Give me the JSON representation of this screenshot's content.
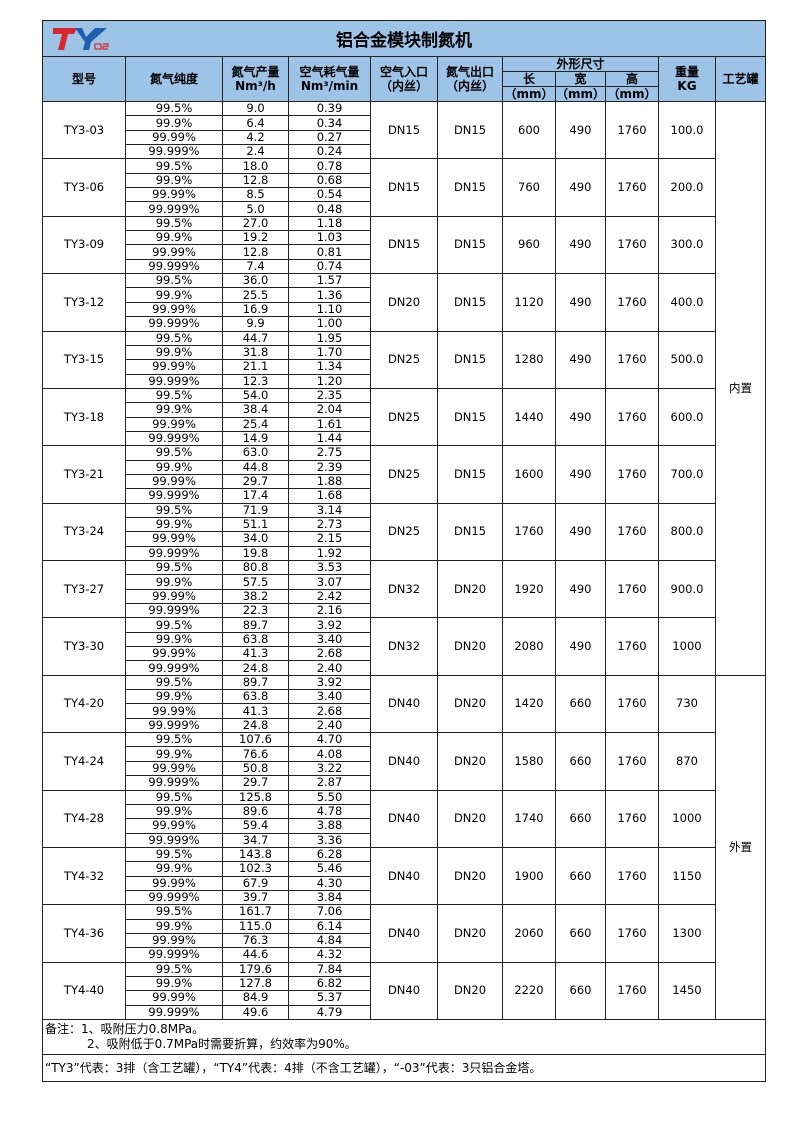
{
  "title": "铝合金模块制氮机",
  "logo_text": "TY O2",
  "headers": {
    "model": "型号",
    "purity": "氮气纯度",
    "output": "氮气产量",
    "output_unit": "Nm³/h",
    "air": "空气耗气量",
    "air_unit": "Nm³/min",
    "air_in": "空气入口",
    "air_in_sub": "（内丝）",
    "n2_out": "氮气出口",
    "n2_out_sub": "（内丝）",
    "dims": "外形尺寸",
    "len": "长",
    "wid": "宽",
    "hei": "高",
    "mm": "（mm）",
    "weight": "重量",
    "weight_unit": "KG",
    "tank": "工艺罐"
  },
  "purities": [
    "99.5%",
    "99.9%",
    "99.99%",
    "99.999%"
  ],
  "tank_groups": [
    {
      "label": "内置",
      "rows": 10
    },
    {
      "label": "外置",
      "rows": 6
    }
  ],
  "models": [
    {
      "model": "TY3-03",
      "output": [
        "9.0",
        "6.4",
        "4.2",
        "2.4"
      ],
      "air": [
        "0.39",
        "0.34",
        "0.27",
        "0.24"
      ],
      "in": "DN15",
      "out": "DN15",
      "l": "600",
      "w": "490",
      "h": "1760",
      "kg": "100.0"
    },
    {
      "model": "TY3-06",
      "output": [
        "18.0",
        "12.8",
        "8.5",
        "5.0"
      ],
      "air": [
        "0.78",
        "0.68",
        "0.54",
        "0.48"
      ],
      "in": "DN15",
      "out": "DN15",
      "l": "760",
      "w": "490",
      "h": "1760",
      "kg": "200.0"
    },
    {
      "model": "TY3-09",
      "output": [
        "27.0",
        "19.2",
        "12.8",
        "7.4"
      ],
      "air": [
        "1.18",
        "1.03",
        "0.81",
        "0.74"
      ],
      "in": "DN15",
      "out": "DN15",
      "l": "960",
      "w": "490",
      "h": "1760",
      "kg": "300.0"
    },
    {
      "model": "TY3-12",
      "output": [
        "36.0",
        "25.5",
        "16.9",
        "9.9"
      ],
      "air": [
        "1.57",
        "1.36",
        "1.10",
        "1.00"
      ],
      "in": "DN20",
      "out": "DN15",
      "l": "1120",
      "w": "490",
      "h": "1760",
      "kg": "400.0"
    },
    {
      "model": "TY3-15",
      "output": [
        "44.7",
        "31.8",
        "21.1",
        "12.3"
      ],
      "air": [
        "1.95",
        "1.70",
        "1.34",
        "1.20"
      ],
      "in": "DN25",
      "out": "DN15",
      "l": "1280",
      "w": "490",
      "h": "1760",
      "kg": "500.0"
    },
    {
      "model": "TY3-18",
      "output": [
        "54.0",
        "38.4",
        "25.4",
        "14.9"
      ],
      "air": [
        "2.35",
        "2.04",
        "1.61",
        "1.44"
      ],
      "in": "DN25",
      "out": "DN15",
      "l": "1440",
      "w": "490",
      "h": "1760",
      "kg": "600.0"
    },
    {
      "model": "TY3-21",
      "output": [
        "63.0",
        "44.8",
        "29.7",
        "17.4"
      ],
      "air": [
        "2.75",
        "2.39",
        "1.88",
        "1.68"
      ],
      "in": "DN25",
      "out": "DN15",
      "l": "1600",
      "w": "490",
      "h": "1760",
      "kg": "700.0"
    },
    {
      "model": "TY3-24",
      "output": [
        "71.9",
        "51.1",
        "34.0",
        "19.8"
      ],
      "air": [
        "3.14",
        "2.73",
        "2.15",
        "1.92"
      ],
      "in": "DN25",
      "out": "DN15",
      "l": "1760",
      "w": "490",
      "h": "1760",
      "kg": "800.0"
    },
    {
      "model": "TY3-27",
      "output": [
        "80.8",
        "57.5",
        "38.2",
        "22.3"
      ],
      "air": [
        "3.53",
        "3.07",
        "2.42",
        "2.16"
      ],
      "in": "DN32",
      "out": "DN20",
      "l": "1920",
      "w": "490",
      "h": "1760",
      "kg": "900.0"
    },
    {
      "model": "TY3-30",
      "output": [
        "89.7",
        "63.8",
        "41.3",
        "24.8"
      ],
      "air": [
        "3.92",
        "3.40",
        "2.68",
        "2.40"
      ],
      "in": "DN32",
      "out": "DN20",
      "l": "2080",
      "w": "490",
      "h": "1760",
      "kg": "1000"
    },
    {
      "model": "TY4-20",
      "output": [
        "89.7",
        "63.8",
        "41.3",
        "24.8"
      ],
      "air": [
        "3.92",
        "3.40",
        "2.68",
        "2.40"
      ],
      "in": "DN40",
      "out": "DN20",
      "l": "1420",
      "w": "660",
      "h": "1760",
      "kg": "730"
    },
    {
      "model": "TY4-24",
      "output": [
        "107.6",
        "76.6",
        "50.8",
        "29.7"
      ],
      "air": [
        "4.70",
        "4.08",
        "3.22",
        "2.87"
      ],
      "in": "DN40",
      "out": "DN20",
      "l": "1580",
      "w": "660",
      "h": "1760",
      "kg": "870"
    },
    {
      "model": "TY4-28",
      "output": [
        "125.8",
        "89.6",
        "59.4",
        "34.7"
      ],
      "air": [
        "5.50",
        "4.78",
        "3.88",
        "3.36"
      ],
      "in": "DN40",
      "out": "DN20",
      "l": "1740",
      "w": "660",
      "h": "1760",
      "kg": "1000"
    },
    {
      "model": "TY4-32",
      "output": [
        "143.8",
        "102.3",
        "67.9",
        "39.7"
      ],
      "air": [
        "6.28",
        "5.46",
        "4.30",
        "3.84"
      ],
      "in": "DN40",
      "out": "DN20",
      "l": "1900",
      "w": "660",
      "h": "1760",
      "kg": "1150"
    },
    {
      "model": "TY4-36",
      "output": [
        "161.7",
        "115.0",
        "76.3",
        "44.6"
      ],
      "air": [
        "7.06",
        "6.14",
        "4.84",
        "4.32"
      ],
      "in": "DN40",
      "out": "DN20",
      "l": "2060",
      "w": "660",
      "h": "1760",
      "kg": "1300"
    },
    {
      "model": "TY4-40",
      "output": [
        "179.6",
        "127.8",
        "84.9",
        "49.6"
      ],
      "air": [
        "7.84",
        "6.82",
        "5.37",
        "4.79"
      ],
      "in": "DN40",
      "out": "DN20",
      "l": "2220",
      "w": "660",
      "h": "1760",
      "kg": "1450"
    }
  ],
  "notes": {
    "line1": "备注：1、吸附压力0.8MPa。",
    "line2": "2、吸附低于0.7MPa时需要折算，约效率为90%。",
    "legend": "“TY3”代表：3排（含工艺罐），“TY4”代表：4排（不含工艺罐），“-03”代表：3只铝合金塔。"
  },
  "colors": {
    "header_bg": "#9dc3e6",
    "logo_red": "#d9262c",
    "logo_blue": "#1f5fae"
  }
}
